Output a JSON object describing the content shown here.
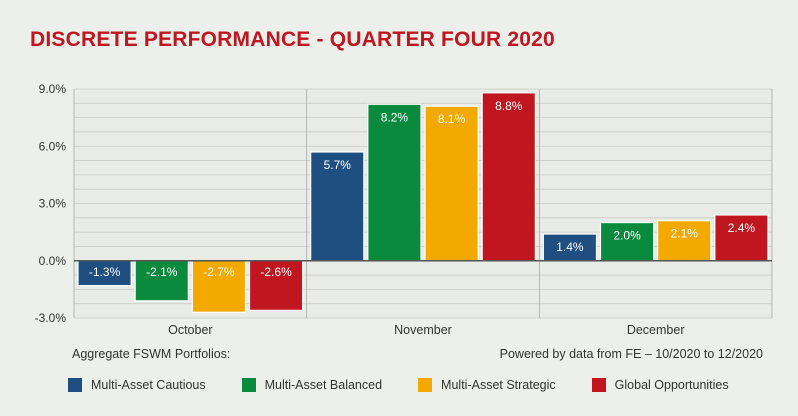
{
  "title": "DISCRETE PERFORMANCE - QUARTER FOUR 2020",
  "footer": {
    "left": "Aggregate FSWM Portfolios:",
    "right": "Powered by data from FE – 10/2020 to 12/2020"
  },
  "chart_data": {
    "type": "bar",
    "categories": [
      "October",
      "November",
      "December"
    ],
    "ylim": [
      -3.0,
      9.0
    ],
    "yticks": [
      "9.0%",
      "6.0%",
      "3.0%",
      "0.0%",
      "-3.0%"
    ],
    "ytick_values": [
      9.0,
      6.0,
      3.0,
      0.0,
      -3.0
    ],
    "grid": true,
    "legend_position": "bottom",
    "series": [
      {
        "name": "Multi-Asset Cautious",
        "color": "#1f4e80",
        "values": [
          -1.3,
          5.7,
          1.4
        ],
        "labels": [
          "-1.3%",
          "5.7%",
          "1.4%"
        ]
      },
      {
        "name": "Multi-Asset Balanced",
        "color": "#0a8a3c",
        "values": [
          -2.1,
          8.2,
          2.0
        ],
        "labels": [
          "-2.1%",
          "8.2%",
          "2.0%"
        ]
      },
      {
        "name": "Multi-Asset Strategic",
        "color": "#f4a900",
        "values": [
          -2.7,
          8.1,
          2.1
        ],
        "labels": [
          "-2.7%",
          "8.1%",
          "2.1%"
        ]
      },
      {
        "name": "Global Opportunities",
        "color": "#c0161f",
        "values": [
          -2.6,
          8.8,
          2.4
        ],
        "labels": [
          "-2.6%",
          "8.8%",
          "2.4%"
        ]
      }
    ]
  }
}
